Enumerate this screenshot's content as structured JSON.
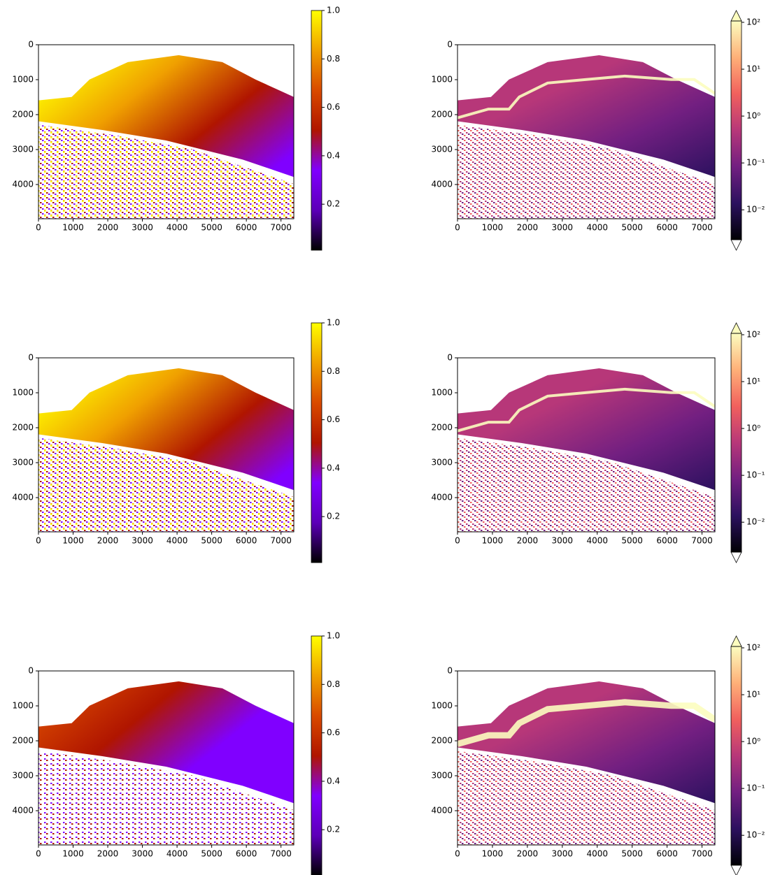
{
  "chart_data": [
    {
      "type": "image",
      "xlim": [
        0,
        7370
      ],
      "ylim": [
        4980,
        0
      ],
      "xticks": [
        0,
        1000,
        2000,
        3000,
        4000,
        5000,
        6000,
        7000
      ],
      "yticks": [
        0,
        1000,
        2000,
        3000,
        4000
      ],
      "colorbar": {
        "scale": "linear",
        "lim": [
          0.01,
          1
        ],
        "extend": "neither",
        "ticks": [
          0.2,
          0.4,
          0.6,
          0.8,
          {
            "value": 1,
            "label": "1.0"
          }
        ],
        "colors": [
          "#000000",
          "#5c00b8",
          "#8000ff",
          "#b01500",
          "#d94a00",
          "#f0a000",
          "#ffff00"
        ]
      }
    },
    {
      "type": "image",
      "xlim": [
        0,
        7370
      ],
      "ylim": [
        4980,
        0
      ],
      "xticks": [
        0,
        1000,
        2000,
        3000,
        4000,
        5000,
        6000,
        7000
      ],
      "yticks": [
        0,
        1000,
        2000,
        3000,
        4000
      ],
      "colorbar": {
        "scale": "log",
        "lim": [
          0.0023,
          107
        ],
        "extend": "both",
        "ticks": [
          {
            "value": 0.01,
            "label": "10⁻²"
          },
          {
            "value": 0.1,
            "label": "10⁻¹"
          },
          {
            "value": 1,
            "label": "10⁰"
          },
          {
            "value": 10,
            "label": "10¹"
          },
          {
            "value": 100,
            "label": "10²"
          }
        ],
        "colors": [
          "#000004",
          "#2c115f",
          "#721f81",
          "#b73779",
          "#f1605d",
          "#feb078",
          "#fcfdbf"
        ]
      }
    },
    {
      "type": "image",
      "xlim": [
        0,
        7370
      ],
      "ylim": [
        4980,
        0
      ],
      "xticks": [
        0,
        1000,
        2000,
        3000,
        4000,
        5000,
        6000,
        7000
      ],
      "yticks": [
        0,
        1000,
        2000,
        3000,
        4000
      ],
      "colorbar": {
        "scale": "linear",
        "lim": [
          0.01,
          1
        ],
        "extend": "neither",
        "ticks": [
          0.2,
          0.4,
          0.6,
          0.8,
          {
            "value": 1,
            "label": "1.0"
          }
        ],
        "colors": [
          "#000000",
          "#5c00b8",
          "#8000ff",
          "#b01500",
          "#d94a00",
          "#f0a000",
          "#ffff00"
        ]
      }
    },
    {
      "type": "image",
      "xlim": [
        0,
        7370
      ],
      "ylim": [
        4980,
        0
      ],
      "xticks": [
        0,
        1000,
        2000,
        3000,
        4000,
        5000,
        6000,
        7000
      ],
      "yticks": [
        0,
        1000,
        2000,
        3000,
        4000
      ],
      "colorbar": {
        "scale": "log",
        "lim": [
          0.0023,
          107
        ],
        "extend": "both",
        "ticks": [
          {
            "value": 0.01,
            "label": "10⁻²"
          },
          {
            "value": 0.1,
            "label": "10⁻¹"
          },
          {
            "value": 1,
            "label": "10⁰"
          },
          {
            "value": 10,
            "label": "10¹"
          },
          {
            "value": 100,
            "label": "10²"
          }
        ],
        "colors": [
          "#000004",
          "#2c115f",
          "#721f81",
          "#b73779",
          "#f1605d",
          "#feb078",
          "#fcfdbf"
        ]
      }
    },
    {
      "type": "image",
      "xlim": [
        0,
        7370
      ],
      "ylim": [
        4980,
        0
      ],
      "xticks": [
        0,
        1000,
        2000,
        3000,
        4000,
        5000,
        6000,
        7000
      ],
      "yticks": [
        0,
        1000,
        2000,
        3000,
        4000
      ],
      "colorbar": {
        "scale": "linear",
        "lim": [
          0.01,
          1
        ],
        "extend": "neither",
        "ticks": [
          0.2,
          0.4,
          0.6,
          0.8,
          {
            "value": 1,
            "label": "1.0"
          }
        ],
        "colors": [
          "#000000",
          "#5c00b8",
          "#8000ff",
          "#b01500",
          "#d94a00",
          "#f0a000",
          "#ffff00"
        ]
      }
    },
    {
      "type": "image",
      "xlim": [
        0,
        7370
      ],
      "ylim": [
        4980,
        0
      ],
      "xticks": [
        0,
        1000,
        2000,
        3000,
        4000,
        5000,
        6000,
        7000
      ],
      "yticks": [
        0,
        1000,
        2000,
        3000,
        4000
      ],
      "colorbar": {
        "scale": "log",
        "lim": [
          0.0023,
          107
        ],
        "extend": "both",
        "ticks": [
          {
            "value": 0.01,
            "label": "10⁻²"
          },
          {
            "value": 0.1,
            "label": "10⁻¹"
          },
          {
            "value": 1,
            "label": "10⁰"
          },
          {
            "value": 10,
            "label": "10¹"
          },
          {
            "value": 100,
            "label": "10²"
          }
        ],
        "colors": [
          "#000004",
          "#2c115f",
          "#721f81",
          "#b73779",
          "#f1605d",
          "#feb078",
          "#fcfdbf"
        ]
      }
    }
  ]
}
